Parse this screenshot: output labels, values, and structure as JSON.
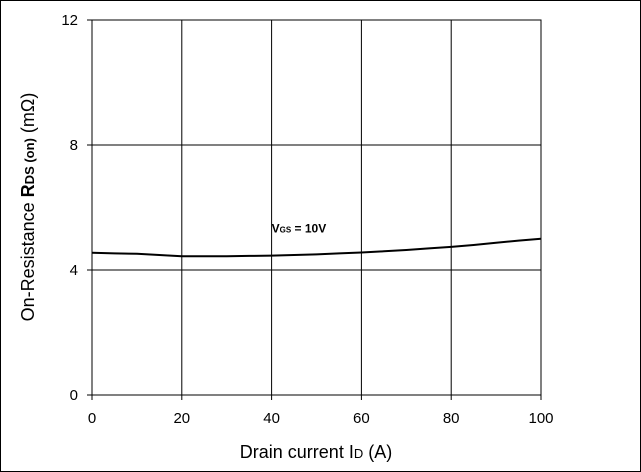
{
  "chart_data": {
    "type": "line",
    "title": "",
    "xlabel": "Drain current I D (A)",
    "xlabel_parts": {
      "main": "Drain current I",
      "sub": "D",
      "unit": " (A)"
    },
    "ylabel_parts": {
      "prefix": "On-Resistance ",
      "symbol": "R",
      "sub": "DS (on)",
      "unit": " (mΩ)"
    },
    "xlim": [
      0,
      100
    ],
    "ylim": [
      0,
      12
    ],
    "xticks": [
      0,
      20,
      40,
      60,
      80,
      100
    ],
    "yticks": [
      0,
      4,
      8,
      12
    ],
    "grid": true,
    "legend": "none",
    "series": [
      {
        "x": [
          0,
          5,
          10,
          15,
          20,
          25,
          30,
          35,
          40,
          45,
          50,
          55,
          60,
          65,
          70,
          75,
          80,
          85,
          90,
          95,
          100
        ],
        "values": [
          4.55,
          4.53,
          4.52,
          4.48,
          4.44,
          4.44,
          4.44,
          4.45,
          4.46,
          4.48,
          4.5,
          4.53,
          4.56,
          4.6,
          4.64,
          4.69,
          4.74,
          4.8,
          4.87,
          4.94,
          5.0
        ],
        "color": "#000000"
      }
    ],
    "annotation": {
      "prefix": "V",
      "sub": "GS",
      "rest": " = 10V",
      "x": 40,
      "y": 5.2
    }
  }
}
